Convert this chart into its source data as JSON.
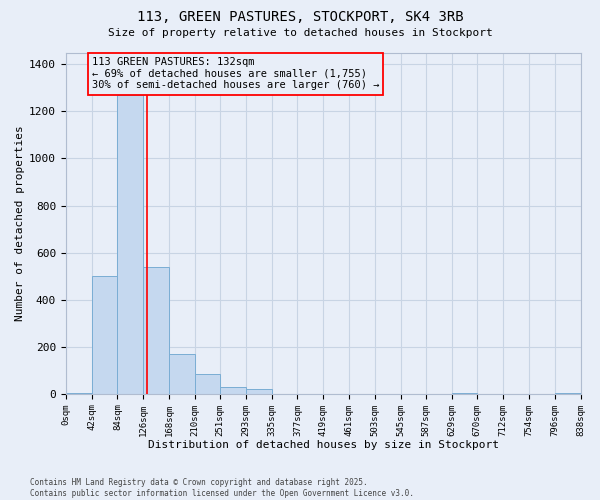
{
  "title": "113, GREEN PASTURES, STOCKPORT, SK4 3RB",
  "subtitle": "Size of property relative to detached houses in Stockport",
  "xlabel": "Distribution of detached houses by size in Stockport",
  "ylabel": "Number of detached properties",
  "footer_line1": "Contains HM Land Registry data © Crown copyright and database right 2025.",
  "footer_line2": "Contains public sector information licensed under the Open Government Licence v3.0.",
  "bar_color": "#c5d8ef",
  "bar_edge_color": "#7aadd4",
  "grid_color": "#c8d4e4",
  "background_color": "#e8eef8",
  "red_line_x": 132,
  "annotation_text": "113 GREEN PASTURES: 132sqm\n← 69% of detached houses are smaller (1,755)\n30% of semi-detached houses are larger (760) →",
  "bin_edges": [
    0,
    42,
    84,
    126,
    168,
    210,
    251,
    293,
    335,
    377,
    419,
    461,
    503,
    545,
    587,
    629,
    670,
    712,
    754,
    796,
    838
  ],
  "bar_heights": [
    5,
    500,
    1270,
    540,
    170,
    85,
    30,
    20,
    0,
    0,
    0,
    0,
    0,
    0,
    0,
    5,
    0,
    0,
    0,
    5
  ],
  "ylim": [
    0,
    1450
  ],
  "yticks": [
    0,
    200,
    400,
    600,
    800,
    1000,
    1200,
    1400
  ],
  "tick_labels": [
    "0sqm",
    "42sqm",
    "84sqm",
    "126sqm",
    "168sqm",
    "210sqm",
    "251sqm",
    "293sqm",
    "335sqm",
    "377sqm",
    "419sqm",
    "461sqm",
    "503sqm",
    "545sqm",
    "587sqm",
    "629sqm",
    "670sqm",
    "712sqm",
    "754sqm",
    "796sqm",
    "838sqm"
  ]
}
